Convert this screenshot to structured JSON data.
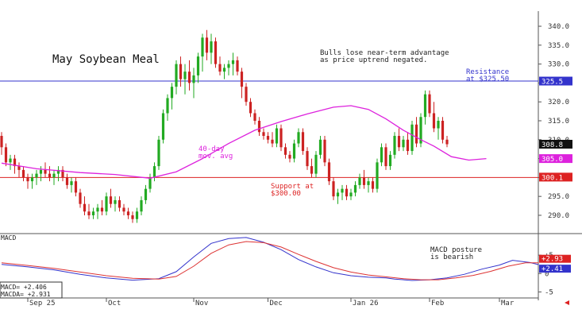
{
  "chart_data": [
    {
      "type": "candlestick",
      "title": "May Soybean Meal",
      "annotation_top": [
        "Bulls lose near-term advantage",
        "as price uptrend negated."
      ],
      "resistance_label": [
        "Resistance",
        "at $325.50"
      ],
      "support_label": [
        "Support at",
        "$300.00"
      ],
      "ma_label": [
        "40-day",
        "mov. avg"
      ],
      "ylim": [
        286,
        344
      ],
      "y_ticks": [
        "290.0",
        "295.0",
        "300.0",
        "305.0",
        "310.0",
        "315.0",
        "320.0",
        "325.0",
        "330.0",
        "335.0",
        "340.0"
      ],
      "price_tags": [
        {
          "label": "325.5",
          "value": 325.5,
          "color": "#3333cc"
        },
        {
          "label": "308.8",
          "value": 308.8,
          "color": "#111111"
        },
        {
          "label": "305.0",
          "value": 305.0,
          "color": "#dd22dd"
        },
        {
          "label": "300.1",
          "value": 300.1,
          "color": "#dd2222"
        }
      ],
      "resistance": 325.5,
      "support": 300.0,
      "x_labels": [
        "Sep 25",
        "Oct",
        "Nov",
        "Dec",
        "Jan 26",
        "Feb",
        "Mar"
      ],
      "candles": [
        [
          311,
          312,
          306,
          308
        ],
        [
          308,
          309,
          303,
          304
        ],
        [
          304,
          306,
          302,
          305
        ],
        [
          305,
          306,
          301,
          303
        ],
        [
          303,
          304,
          300,
          302
        ],
        [
          302,
          303,
          299,
          300
        ],
        [
          300,
          301,
          297,
          299
        ],
        [
          299,
          301,
          297,
          300
        ],
        [
          300,
          302,
          298,
          301
        ],
        [
          301,
          303,
          299,
          302
        ],
        [
          302,
          304,
          300,
          301
        ],
        [
          301,
          303,
          299,
          300
        ],
        [
          300,
          302,
          298,
          301
        ],
        [
          301,
          303,
          299,
          302
        ],
        [
          302,
          303,
          299,
          300
        ],
        [
          300,
          301,
          297,
          298
        ],
        [
          298,
          300,
          296,
          299
        ],
        [
          299,
          300,
          295,
          296
        ],
        [
          296,
          297,
          292,
          293
        ],
        [
          293,
          295,
          290,
          291
        ],
        [
          291,
          293,
          289,
          290
        ],
        [
          290,
          292,
          289,
          291
        ],
        [
          291,
          293,
          289,
          292
        ],
        [
          292,
          294,
          290,
          291
        ],
        [
          291,
          296,
          290,
          295
        ],
        [
          295,
          297,
          292,
          293
        ],
        [
          293,
          295,
          291,
          294
        ],
        [
          294,
          295,
          291,
          292
        ],
        [
          292,
          293,
          290,
          291
        ],
        [
          291,
          292,
          289,
          290
        ],
        [
          290,
          291,
          288,
          289
        ],
        [
          289,
          292,
          288,
          291
        ],
        [
          291,
          295,
          290,
          294
        ],
        [
          294,
          298,
          293,
          297
        ],
        [
          297,
          301,
          296,
          300
        ],
        [
          300,
          304,
          299,
          303
        ],
        [
          303,
          311,
          302,
          310
        ],
        [
          310,
          318,
          309,
          317
        ],
        [
          317,
          322,
          315,
          321
        ],
        [
          321,
          325,
          318,
          324
        ],
        [
          324,
          331,
          322,
          330
        ],
        [
          330,
          332,
          324,
          326
        ],
        [
          326,
          330,
          322,
          328
        ],
        [
          328,
          331,
          323,
          325
        ],
        [
          325,
          329,
          321,
          327
        ],
        [
          327,
          333,
          325,
          332
        ],
        [
          332,
          338,
          328,
          337
        ],
        [
          337,
          339,
          331,
          333
        ],
        [
          333,
          338,
          330,
          336
        ],
        [
          336,
          337,
          329,
          330
        ],
        [
          330,
          332,
          327,
          328
        ],
        [
          328,
          330,
          326,
          329
        ],
        [
          329,
          331,
          327,
          330
        ],
        [
          330,
          333,
          327,
          331
        ],
        [
          331,
          332,
          327,
          328
        ],
        [
          328,
          329,
          321,
          324
        ],
        [
          324,
          325,
          319,
          320
        ],
        [
          320,
          321,
          316,
          317
        ],
        [
          317,
          318,
          314,
          315
        ],
        [
          315,
          316,
          311,
          312
        ],
        [
          312,
          313,
          310,
          311
        ],
        [
          311,
          312,
          309,
          310
        ],
        [
          310,
          312,
          308,
          309
        ],
        [
          309,
          314,
          308,
          313
        ],
        [
          313,
          314,
          307,
          308
        ],
        [
          308,
          309,
          305,
          306
        ],
        [
          306,
          307,
          304,
          305
        ],
        [
          305,
          310,
          304,
          309
        ],
        [
          309,
          313,
          308,
          312
        ],
        [
          312,
          313,
          306,
          307
        ],
        [
          307,
          308,
          302,
          303
        ],
        [
          303,
          305,
          300,
          301
        ],
        [
          301,
          307,
          300,
          306
        ],
        [
          306,
          311,
          305,
          310
        ],
        [
          310,
          311,
          303,
          304
        ],
        [
          304,
          305,
          298,
          299
        ],
        [
          299,
          300,
          294,
          295
        ],
        [
          295,
          297,
          293,
          296
        ],
        [
          296,
          298,
          294,
          297
        ],
        [
          297,
          298,
          294,
          295
        ],
        [
          295,
          297,
          294,
          296
        ],
        [
          296,
          299,
          295,
          298
        ],
        [
          298,
          301,
          297,
          300
        ],
        [
          300,
          302,
          297,
          298
        ],
        [
          298,
          300,
          296,
          299
        ],
        [
          299,
          300,
          296,
          297
        ],
        [
          297,
          305,
          296,
          304
        ],
        [
          304,
          309,
          303,
          308
        ],
        [
          308,
          309,
          302,
          303
        ],
        [
          303,
          307,
          302,
          306
        ],
        [
          306,
          312,
          305,
          311
        ],
        [
          311,
          313,
          307,
          308
        ],
        [
          308,
          311,
          307,
          310
        ],
        [
          310,
          312,
          306,
          307
        ],
        [
          307,
          315,
          306,
          314
        ],
        [
          314,
          316,
          308,
          309
        ],
        [
          309,
          317,
          308,
          316
        ],
        [
          316,
          323,
          314,
          322
        ],
        [
          322,
          323,
          316,
          317
        ],
        [
          317,
          320,
          312,
          313
        ],
        [
          313,
          316,
          310,
          315
        ],
        [
          315,
          316,
          309,
          310
        ],
        [
          310,
          311,
          308,
          308.8
        ]
      ],
      "moving_average": [
        [
          0,
          303.8
        ],
        [
          8,
          302.3
        ],
        [
          18,
          301.3
        ],
        [
          26,
          300.8
        ],
        [
          34,
          299.8
        ],
        [
          40,
          301.5
        ],
        [
          46,
          305
        ],
        [
          52,
          309
        ],
        [
          58,
          312.5
        ],
        [
          64,
          314.8
        ],
        [
          70,
          316.8
        ],
        [
          76,
          318.6
        ],
        [
          80,
          319
        ],
        [
          84,
          318
        ],
        [
          88,
          315.5
        ],
        [
          92,
          312.5
        ],
        [
          96,
          310
        ],
        [
          99,
          308.3
        ],
        [
          103,
          305.5
        ],
        [
          107,
          304.6
        ],
        [
          111,
          305
        ]
      ]
    },
    {
      "type": "line",
      "title": "MACD",
      "annotation": [
        "MACD posture",
        "is bearish"
      ],
      "readout": [
        "MACD=  +2.406",
        "MACDA= +2.931"
      ],
      "y_ticks": [
        "+5",
        "0",
        "-5"
      ],
      "ylim": [
        -6,
        10
      ],
      "tags": [
        {
          "label": "+2.93",
          "value": 2.931,
          "color": "#dd2222"
        },
        {
          "label": "+2.41",
          "value": 2.406,
          "color": "#3333cc"
        }
      ],
      "series": [
        {
          "name": "MACD",
          "color": "#3333cc",
          "points": [
            [
              0,
              2.5
            ],
            [
              6,
              1.8
            ],
            [
              12,
              1.0
            ],
            [
              18,
              -0.2
            ],
            [
              24,
              -1.2
            ],
            [
              30,
              -1.8
            ],
            [
              36,
              -1.4
            ],
            [
              40,
              0.5
            ],
            [
              44,
              4.5
            ],
            [
              48,
              8.2
            ],
            [
              52,
              9.5
            ],
            [
              56,
              9.8
            ],
            [
              60,
              8.5
            ],
            [
              64,
              6.5
            ],
            [
              68,
              3.8
            ],
            [
              72,
              1.8
            ],
            [
              76,
              0.2
            ],
            [
              80,
              -0.6
            ],
            [
              84,
              -1.0
            ],
            [
              88,
              -1.2
            ],
            [
              90,
              -1.5
            ],
            [
              94,
              -1.9
            ],
            [
              98,
              -1.7
            ],
            [
              102,
              -1.2
            ],
            [
              106,
              -0.2
            ],
            [
              110,
              1.2
            ],
            [
              114,
              2.3
            ],
            [
              117,
              3.6
            ],
            [
              121,
              3.0
            ],
            [
              123,
              2.4
            ]
          ]
        },
        {
          "name": "MACDA",
          "color": "#dd3333",
          "points": [
            [
              0,
              2.9
            ],
            [
              6,
              2.2
            ],
            [
              12,
              1.4
            ],
            [
              18,
              0.4
            ],
            [
              24,
              -0.6
            ],
            [
              30,
              -1.3
            ],
            [
              36,
              -1.5
            ],
            [
              40,
              -0.8
            ],
            [
              44,
              2.0
            ],
            [
              48,
              5.5
            ],
            [
              52,
              7.8
            ],
            [
              56,
              8.7
            ],
            [
              60,
              8.4
            ],
            [
              64,
              7.2
            ],
            [
              68,
              5.2
            ],
            [
              72,
              3.3
            ],
            [
              76,
              1.6
            ],
            [
              80,
              0.4
            ],
            [
              84,
              -0.4
            ],
            [
              88,
              -0.9
            ],
            [
              92,
              -1.4
            ],
            [
              96,
              -1.7
            ],
            [
              100,
              -1.7
            ],
            [
              104,
              -1.2
            ],
            [
              108,
              -0.5
            ],
            [
              112,
              0.6
            ],
            [
              116,
              2.0
            ],
            [
              120,
              2.9
            ],
            [
              123,
              2.9
            ]
          ]
        }
      ]
    }
  ]
}
